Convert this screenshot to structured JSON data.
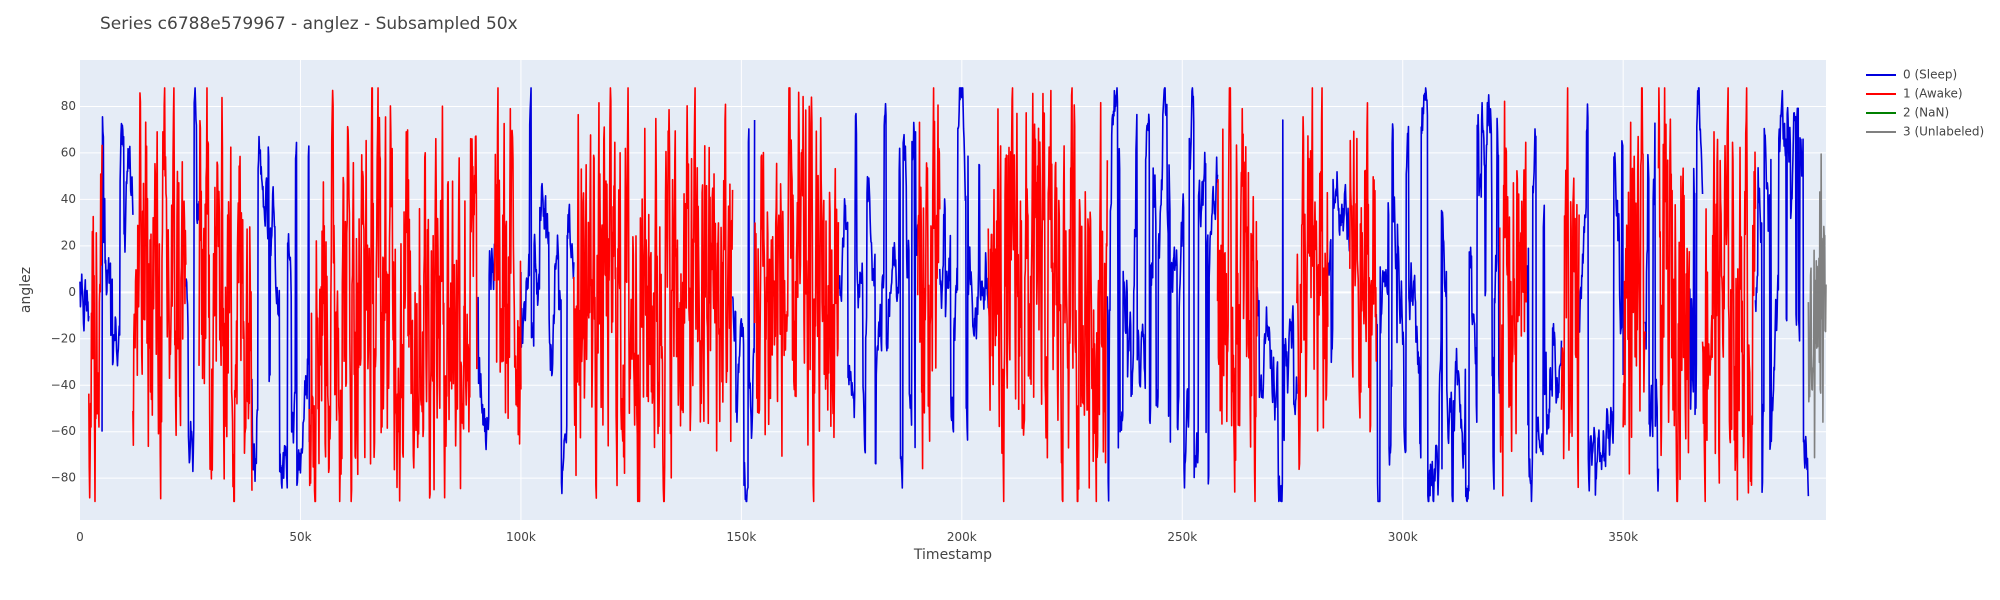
{
  "chart_data": {
    "type": "line",
    "title": "Series c6788e579967 - anglez - Subsampled 50x",
    "xlabel": "Timestamp",
    "ylabel": "anglez",
    "xlim": [
      0,
      396000
    ],
    "ylim": [
      -98,
      100
    ],
    "x_ticks": [
      {
        "value": 0,
        "label": "0"
      },
      {
        "value": 50000,
        "label": "50k"
      },
      {
        "value": 100000,
        "label": "100k"
      },
      {
        "value": 150000,
        "label": "150k"
      },
      {
        "value": 200000,
        "label": "200k"
      },
      {
        "value": 250000,
        "label": "250k"
      },
      {
        "value": 300000,
        "label": "300k"
      },
      {
        "value": 350000,
        "label": "350k"
      }
    ],
    "y_ticks": [
      {
        "value": 80,
        "label": "80"
      },
      {
        "value": 60,
        "label": "60"
      },
      {
        "value": 40,
        "label": "40"
      },
      {
        "value": 20,
        "label": "20"
      },
      {
        "value": 0,
        "label": "0"
      },
      {
        "value": -20,
        "label": "−20"
      },
      {
        "value": -40,
        "label": "−40"
      },
      {
        "value": -60,
        "label": "−60"
      },
      {
        "value": -80,
        "label": "−80"
      }
    ],
    "grid": true,
    "legend_position": "top-right",
    "series": [
      {
        "name": "0 (Sleep)",
        "color": "#0000dd",
        "segments": [
          [
            0,
            2000
          ],
          [
            5000,
            12000
          ],
          [
            24000,
            27000
          ],
          [
            39000,
            52000
          ],
          [
            90000,
            94000
          ],
          [
            100000,
            112000
          ],
          [
            148000,
            153000
          ],
          [
            172000,
            190000
          ],
          [
            195000,
            206000
          ],
          [
            233000,
            258000
          ],
          [
            267000,
            276000
          ],
          [
            283000,
            288000
          ],
          [
            294000,
            322000
          ],
          [
            328000,
            336000
          ],
          [
            340000,
            350000
          ],
          [
            355000,
            358000
          ],
          [
            365000,
            368000
          ],
          [
            380000,
            392000
          ]
        ]
      },
      {
        "name": "1 (Awake)",
        "color": "#ff0000",
        "segments": [
          [
            2000,
            5000
          ],
          [
            12000,
            24000
          ],
          [
            27000,
            39000
          ],
          [
            52000,
            90000
          ],
          [
            94000,
            100000
          ],
          [
            112000,
            148000
          ],
          [
            153000,
            172000
          ],
          [
            190000,
            195000
          ],
          [
            206000,
            233000
          ],
          [
            258000,
            267000
          ],
          [
            276000,
            283000
          ],
          [
            288000,
            294000
          ],
          [
            322000,
            328000
          ],
          [
            336000,
            340000
          ],
          [
            350000,
            355000
          ],
          [
            358000,
            365000
          ],
          [
            368000,
            380000
          ]
        ]
      },
      {
        "name": "2 (NaN)",
        "color": "#008000",
        "segments": []
      },
      {
        "name": "3 (Unlabeled)",
        "color": "#808080",
        "segments": [
          [
            392000,
            396000
          ]
        ]
      }
    ]
  }
}
